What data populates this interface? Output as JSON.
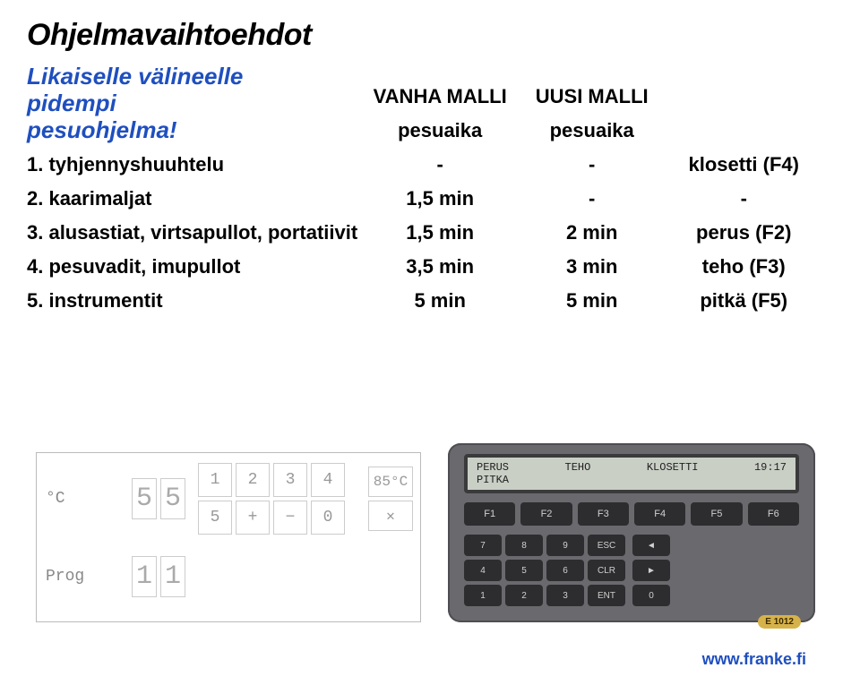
{
  "title": "Ohjelmavaihtoehdot",
  "subtitle_lines": [
    "Likaiselle välineelle",
    "pidempi",
    "pesuohjelma!"
  ],
  "table": {
    "head": {
      "col1": "VANHA MALLI",
      "col2": "UUSI MALLI"
    },
    "subhead": {
      "col1": "pesuaika",
      "col2": "pesuaika"
    },
    "rows": [
      {
        "label": "1. tyhjennyshuuhtelu",
        "c1": "-",
        "c2": "-",
        "c3": "klosetti (F4)"
      },
      {
        "label": "2. kaarimaljat",
        "c1": "1,5 min",
        "c2": "-",
        "c3": "-"
      },
      {
        "label": "3. alusastiat, virtsapullot, portatiivit",
        "c1": "1,5 min",
        "c2": "2 min",
        "c3": "perus (F2)"
      },
      {
        "label": "4. pesuvadit, imupullot",
        "c1": "3,5 min",
        "c2": "3 min",
        "c3": "teho (F3)"
      },
      {
        "label": "5. instrumentit",
        "c1": "5 min",
        "c2": "5 min",
        "c3": "pitkä (F5)"
      }
    ]
  },
  "left_panel": {
    "label_c": "°C",
    "label_prog": "Prog",
    "seg_top": [
      "5",
      "5"
    ],
    "seg_bot": [
      "1",
      "1"
    ],
    "keys": [
      "1",
      "2",
      "3",
      "4",
      "5",
      "+",
      "−",
      "0"
    ],
    "xx_top": "85°C",
    "xx_bot": "✕"
  },
  "right_panel": {
    "lcd_top": [
      "PERUS",
      "TEHO",
      "KLOSETTI",
      "19:17"
    ],
    "lcd_bot": [
      "PITKA"
    ],
    "fkeys": [
      "F1",
      "F2",
      "F3",
      "F4",
      "F5",
      "F6"
    ],
    "numkeys": [
      "7",
      "8",
      "9",
      "ESC",
      "4",
      "5",
      "6",
      "CLR",
      "1",
      "2",
      "3",
      "ENT"
    ],
    "sidekeys": [
      "◄",
      "►",
      "0"
    ],
    "brand": "E 1012"
  },
  "footer": "www.franke.fi",
  "colors": {
    "accent": "#1f4fbf",
    "panel": "#6a6a6e",
    "lcd": "#c9cfc5",
    "btn": "#2d2d2f",
    "brand_bg": "#d6b24a"
  }
}
